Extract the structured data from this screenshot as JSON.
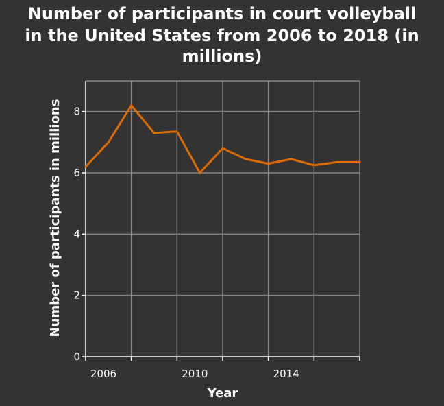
{
  "chart_data": {
    "type": "line",
    "title_lines": [
      "Number of participants in court volleyball",
      "in the United States from 2006 to 2018 (in",
      "millions)"
    ],
    "xlabel": "Year",
    "ylabel": "Number of participants in millions",
    "xlim": [
      2006,
      2018
    ],
    "ylim": [
      0,
      9
    ],
    "x_ticks": [
      2006,
      2010,
      2014
    ],
    "x_grid": [
      2006,
      2008,
      2010,
      2012,
      2014,
      2016,
      2018
    ],
    "y_ticks": [
      0,
      2,
      4,
      6,
      8
    ],
    "grid": true,
    "x": [
      2006,
      2007,
      2008,
      2009,
      2010,
      2011,
      2012,
      2013,
      2014,
      2015,
      2016,
      2017,
      2018
    ],
    "values": [
      6.2,
      7.0,
      8.2,
      7.3,
      7.35,
      6.0,
      6.8,
      6.45,
      6.3,
      6.45,
      6.25,
      6.35,
      6.35
    ],
    "colors": {
      "line": "#e06c00",
      "background": "#333333",
      "grid": "#888888",
      "axis": "#ffffff",
      "text": "#ffffff"
    }
  }
}
